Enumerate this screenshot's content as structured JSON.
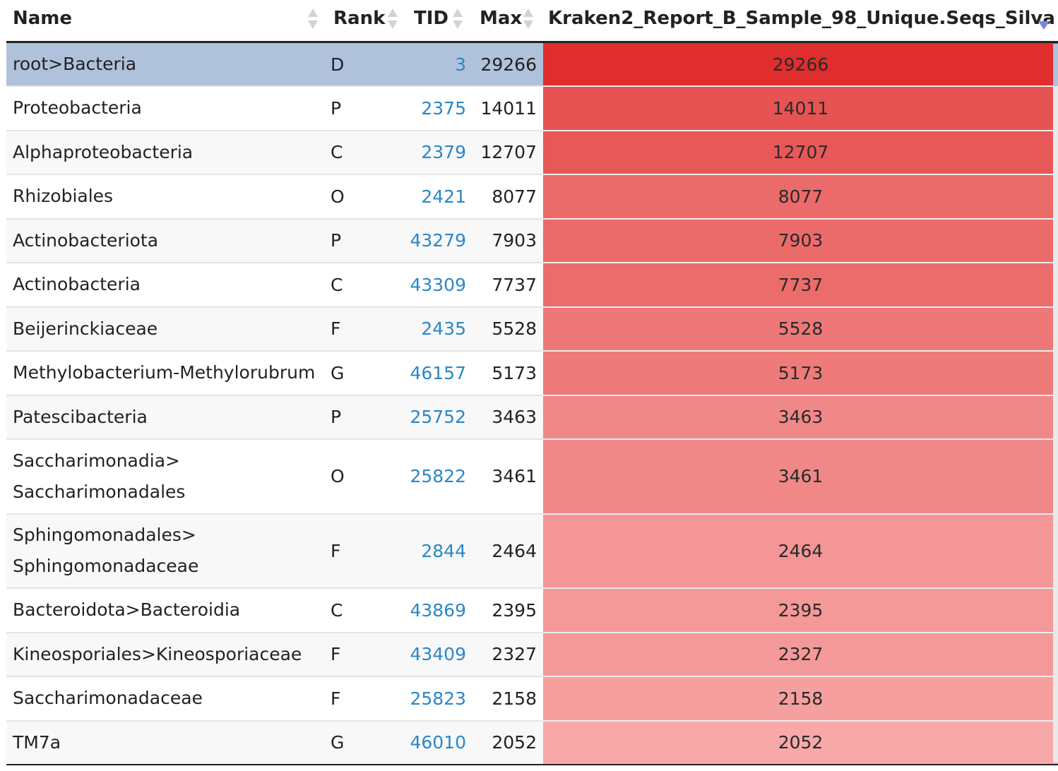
{
  "table": {
    "headers": {
      "name": "Name",
      "rank": "Rank",
      "tid": "TID",
      "max": "Max",
      "sample": "Kraken2_Report_B_Sample_98_Unique.Seqs_Silva"
    },
    "sort": {
      "column": "sample",
      "direction": "descending",
      "indicator_color": "#7b86e0"
    },
    "heat_colors": {
      "high": "#e02d2d",
      "low": "#f7a9a9"
    },
    "selected_color": "#b0c1dc",
    "link_color": "#2a87c7",
    "rows": [
      {
        "name": "root>Bacteria",
        "rank": "D",
        "tid": "3",
        "max": "29266",
        "value": "29266",
        "selected": true
      },
      {
        "name": "Proteobacteria",
        "rank": "P",
        "tid": "2375",
        "max": "14011",
        "value": "14011"
      },
      {
        "name": "Alphaproteobacteria",
        "rank": "C",
        "tid": "2379",
        "max": "12707",
        "value": "12707"
      },
      {
        "name": "Rhizobiales",
        "rank": "O",
        "tid": "2421",
        "max": "8077",
        "value": "8077"
      },
      {
        "name": "Actinobacteriota",
        "rank": "P",
        "tid": "43279",
        "max": "7903",
        "value": "7903"
      },
      {
        "name": "Actinobacteria",
        "rank": "C",
        "tid": "43309",
        "max": "7737",
        "value": "7737"
      },
      {
        "name": "Beijerinckiaceae",
        "rank": "F",
        "tid": "2435",
        "max": "5528",
        "value": "5528"
      },
      {
        "name": "Methylobacterium-Methylorubrum",
        "rank": "G",
        "tid": "46157",
        "max": "5173",
        "value": "5173"
      },
      {
        "name": "Patescibacteria",
        "rank": "P",
        "tid": "25752",
        "max": "3463",
        "value": "3463"
      },
      {
        "name": "Saccharimonadia>\nSaccharimonadales",
        "rank": "O",
        "tid": "25822",
        "max": "3461",
        "value": "3461",
        "tall": true
      },
      {
        "name": "Sphingomonadales>\nSphingomonadaceae",
        "rank": "F",
        "tid": "2844",
        "max": "2464",
        "value": "2464",
        "tall": true
      },
      {
        "name": "Bacteroidota>Bacteroidia",
        "rank": "C",
        "tid": "43869",
        "max": "2395",
        "value": "2395"
      },
      {
        "name": "Kineosporiales>Kineosporiaceae",
        "rank": "F",
        "tid": "43409",
        "max": "2327",
        "value": "2327"
      },
      {
        "name": "Saccharimonadaceae",
        "rank": "F",
        "tid": "25823",
        "max": "2158",
        "value": "2158"
      },
      {
        "name": "TM7a",
        "rank": "G",
        "tid": "46010",
        "max": "2052",
        "value": "2052"
      }
    ]
  }
}
